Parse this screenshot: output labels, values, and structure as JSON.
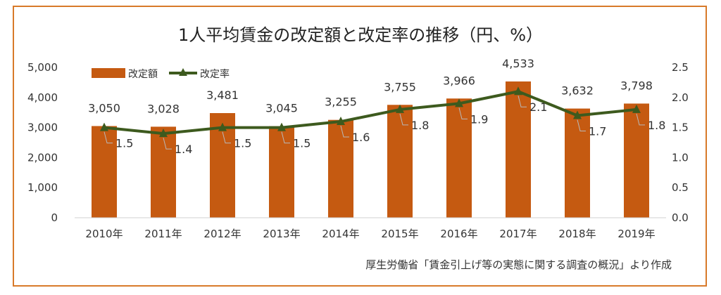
{
  "chart_data": {
    "type": "bar",
    "title": "1人平均賃金の改定額と改定率の推移（円、%）",
    "categories": [
      "2010年",
      "2011年",
      "2012年",
      "2013年",
      "2014年",
      "2015年",
      "2016年",
      "2017年",
      "2018年",
      "2019年"
    ],
    "series": [
      {
        "name": "改定額",
        "type": "bar",
        "axis": "left",
        "values": [
          3050,
          3028,
          3481,
          3045,
          3255,
          3755,
          3966,
          4533,
          3632,
          3798
        ],
        "labels": [
          "3,050",
          "3,028",
          "3,481",
          "3,045",
          "3,255",
          "3,755",
          "3,966",
          "4,533",
          "3,632",
          "3,798"
        ]
      },
      {
        "name": "改定率",
        "type": "line",
        "axis": "right",
        "values": [
          1.5,
          1.4,
          1.5,
          1.5,
          1.6,
          1.8,
          1.9,
          2.1,
          1.7,
          1.8
        ],
        "labels": [
          "1.5",
          "1.4",
          "1.5",
          "1.5",
          "1.6",
          "1.8",
          "1.9",
          "2.1",
          "1.7",
          "1.8"
        ]
      }
    ],
    "y_left": {
      "range": [
        0,
        5000
      ],
      "ticks": [
        "0",
        "1,000",
        "2,000",
        "3,000",
        "4,000",
        "5,000"
      ]
    },
    "y_right": {
      "range": [
        0,
        2.5
      ],
      "ticks": [
        "0.0",
        "0.5",
        "1.0",
        "1.5",
        "2.0",
        "2.5"
      ]
    },
    "legend_position": "top-left",
    "grid": false,
    "colors": {
      "bar": "#c55a11",
      "line": "#3d5a1e",
      "frame": "#d87a2a"
    },
    "source": "厚生労働省「賃金引上げ等の実態に関する調査の概況」より作成"
  }
}
